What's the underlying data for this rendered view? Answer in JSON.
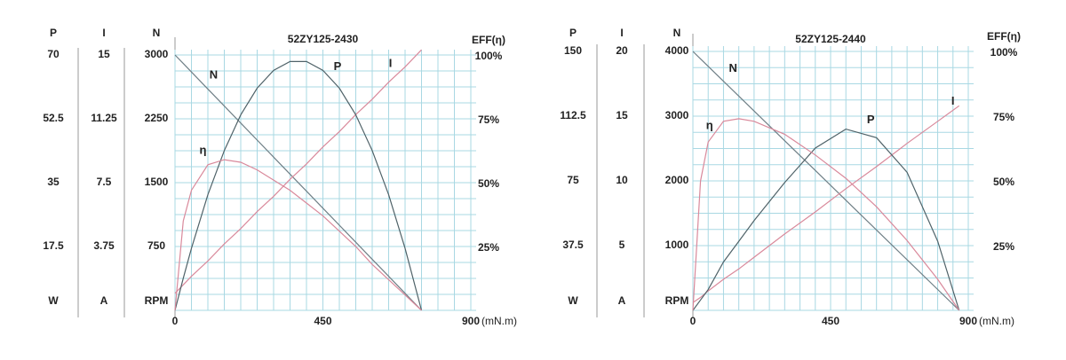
{
  "chart_data": [
    {
      "type": "line",
      "title": "52ZY125-2430",
      "x_unit": "(mN.m)",
      "x": [
        0,
        25,
        50,
        100,
        150,
        200,
        250,
        300,
        350,
        400,
        450,
        500,
        550,
        600,
        650,
        700,
        750
      ],
      "xlim": [
        0,
        900
      ],
      "xticks": [
        0,
        450,
        900
      ],
      "grid": true,
      "axes": [
        {
          "name": "P",
          "unit": "W",
          "lim": [
            0,
            70
          ],
          "ticks": [
            17.5,
            35,
            52.5,
            70
          ]
        },
        {
          "name": "I",
          "unit": "A",
          "lim": [
            0,
            15
          ],
          "ticks": [
            3.75,
            7.5,
            11.25,
            15
          ]
        },
        {
          "name": "N",
          "unit": "RPM",
          "lim": [
            0,
            3000
          ],
          "ticks": [
            750,
            1500,
            2250,
            3000
          ]
        },
        {
          "name": "EFF(η)",
          "lim": [
            0,
            100
          ],
          "ticks": [
            {
              "value": 25,
              "label": "25%"
            },
            {
              "value": 50,
              "label": "50%"
            },
            {
              "value": 75,
              "label": "75%"
            },
            {
              "value": 100,
              "label": "100%"
            }
          ]
        }
      ],
      "series": [
        {
          "name": "N",
          "axis": "N",
          "color": "#6f7f86",
          "values": [
            3000,
            2900,
            2800,
            2600,
            2400,
            2200,
            2000,
            1800,
            1600,
            1400,
            1200,
            1000,
            800,
            600,
            400,
            200,
            0
          ]
        },
        {
          "name": "I",
          "axis": "I",
          "color": "#d9899b",
          "values": [
            1.0,
            1.5,
            2.0,
            2.9,
            3.9,
            4.8,
            5.8,
            6.7,
            7.7,
            8.6,
            9.6,
            10.5,
            11.5,
            12.4,
            13.4,
            14.3,
            15.3
          ]
        },
        {
          "name": "P",
          "axis": "P",
          "color": "#4f6268",
          "values": [
            0,
            8.8,
            17.0,
            31.7,
            43.8,
            53.6,
            60.9,
            65.8,
            68.2,
            68.2,
            65.8,
            60.9,
            53.6,
            43.8,
            31.7,
            17.0,
            0
          ]
        },
        {
          "name": "η",
          "axis": "EFF(η)",
          "color": "#d9899b",
          "values": [
            0,
            35,
            47,
            57,
            59,
            58,
            55,
            51,
            47,
            42,
            37,
            31,
            25,
            18,
            12,
            6,
            0
          ]
        }
      ]
    },
    {
      "type": "line",
      "title": "52ZY125-2440",
      "x_unit": "(mN.m)",
      "x": [
        0,
        25,
        50,
        100,
        150,
        200,
        300,
        400,
        500,
        600,
        700,
        800,
        870
      ],
      "xlim": [
        0,
        900
      ],
      "xticks": [
        0,
        450,
        900
      ],
      "grid": true,
      "axes": [
        {
          "name": "P",
          "unit": "W",
          "lim": [
            0,
            150
          ],
          "ticks": [
            37.5,
            75,
            112.5,
            150
          ]
        },
        {
          "name": "I",
          "unit": "A",
          "lim": [
            0,
            20
          ],
          "ticks": [
            5,
            10,
            15,
            20
          ]
        },
        {
          "name": "N",
          "unit": "RPM",
          "lim": [
            0,
            4000
          ],
          "ticks": [
            1000,
            2000,
            3000,
            4000
          ]
        },
        {
          "name": "EFF(η)",
          "lim": [
            0,
            100
          ],
          "ticks": [
            {
              "value": 25,
              "label": "25%"
            },
            {
              "value": 50,
              "label": "50%"
            },
            {
              "value": 75,
              "label": "75%"
            },
            {
              "value": 100,
              "label": "100%"
            }
          ]
        }
      ],
      "series": [
        {
          "name": "N",
          "axis": "N",
          "color": "#6f7f86",
          "values": [
            4000,
            3885,
            3770,
            3540,
            3310,
            3080,
            2621,
            2161,
            1701,
            1241,
            782,
            322,
            0
          ]
        },
        {
          "name": "I",
          "axis": "I",
          "color": "#d9899b",
          "values": [
            0.6,
            1.0,
            1.5,
            2.4,
            3.2,
            4.1,
            5.9,
            7.6,
            9.4,
            11.1,
            12.9,
            14.6,
            15.8
          ]
        },
        {
          "name": "P",
          "axis": "P",
          "color": "#4f6268",
          "values": [
            0,
            6,
            12,
            28,
            40,
            52,
            74,
            94,
            105,
            100,
            80,
            40,
            0
          ]
        },
        {
          "name": "η",
          "axis": "EFF(η)",
          "color": "#d9899b",
          "values": [
            0,
            50,
            65,
            73,
            74,
            73,
            68,
            60,
            51,
            40,
            27,
            12,
            0
          ]
        }
      ]
    }
  ]
}
